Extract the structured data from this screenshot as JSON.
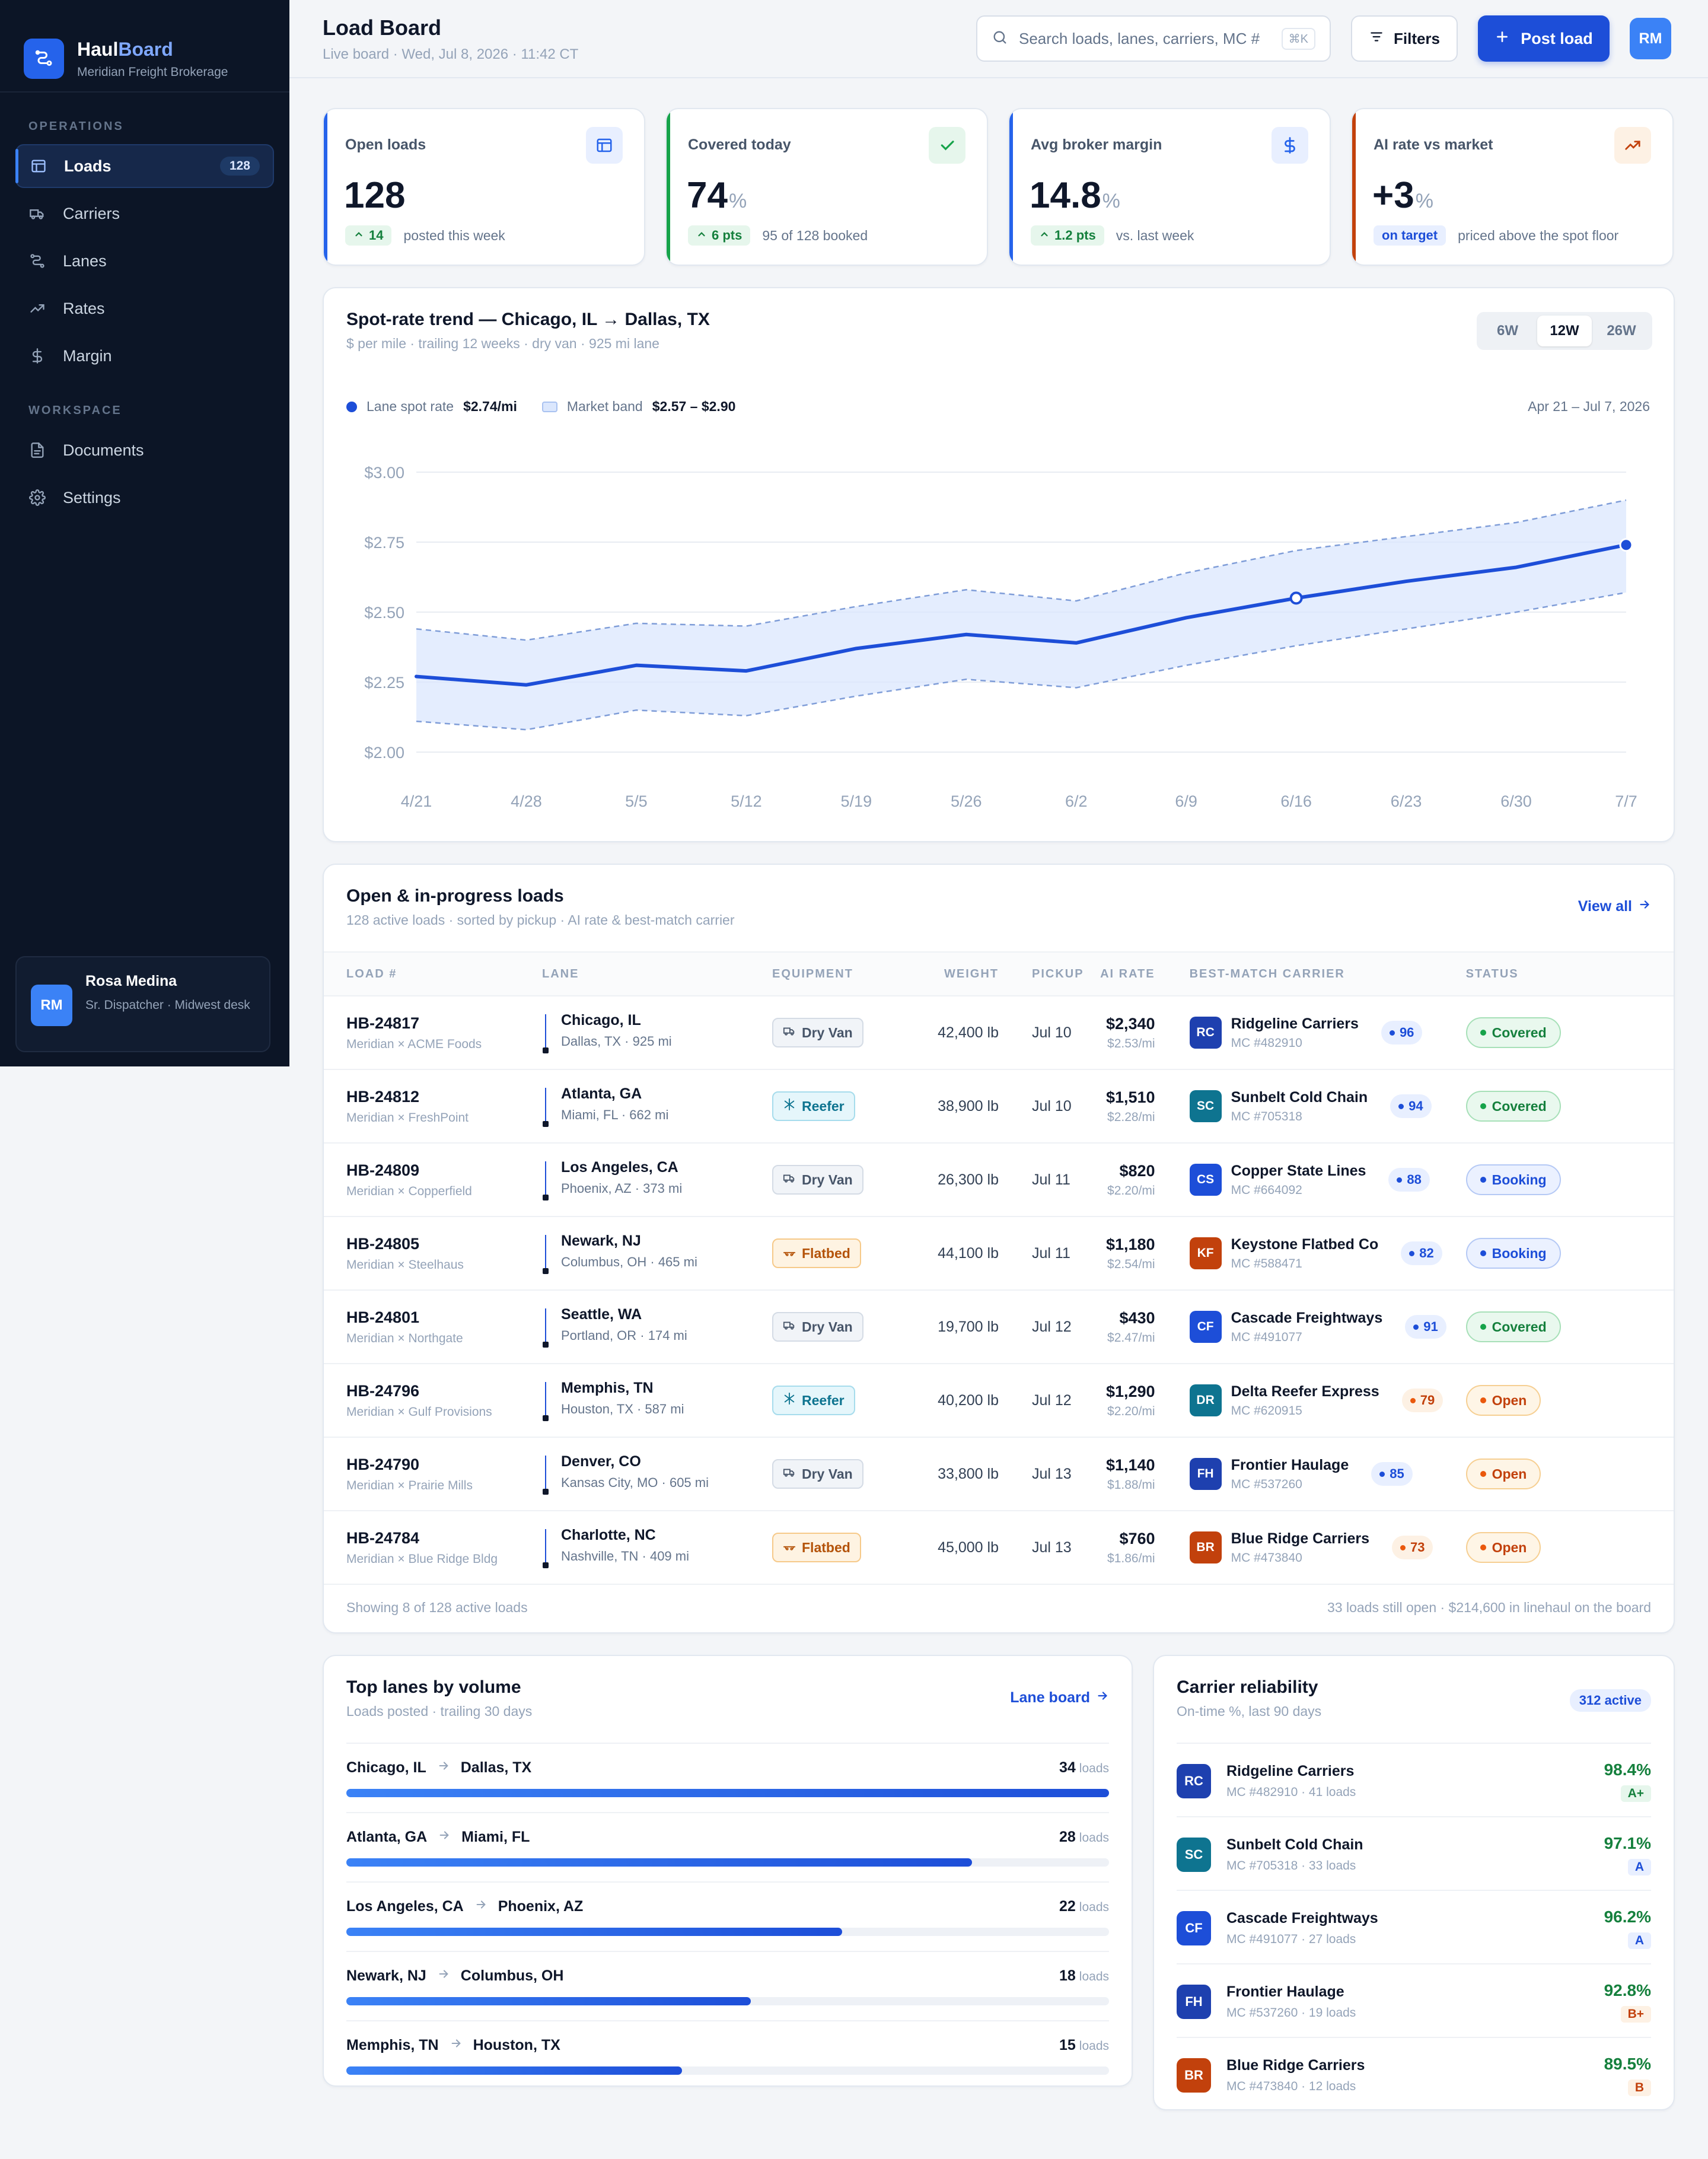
{
  "brand": {
    "name_part1": "Haul",
    "name_part2": "Board",
    "subtitle": "Meridian Freight Brokerage"
  },
  "sidebar": {
    "section_operations": "OPERATIONS",
    "section_workspace": "WORKSPACE",
    "items": [
      {
        "label": "Loads",
        "icon": "grid-icon",
        "badge": "128",
        "active": true
      },
      {
        "label": "Carriers",
        "icon": "truck-icon"
      },
      {
        "label": "Lanes",
        "icon": "route-icon"
      },
      {
        "label": "Rates",
        "icon": "trend-icon"
      },
      {
        "label": "Margin",
        "icon": "dollar-icon"
      }
    ],
    "workspace_items": [
      {
        "label": "Documents",
        "icon": "document-icon"
      },
      {
        "label": "Settings",
        "icon": "gear-icon"
      }
    ],
    "user": {
      "initials": "RM",
      "name": "Rosa Medina",
      "role": "Sr. Dispatcher · Midwest desk"
    }
  },
  "header": {
    "title": "Load Board",
    "subtitle": "Live board · Wed, Jul 8, 2026 · 11:42 CT",
    "search_placeholder": "Search loads, lanes, carriers, MC #",
    "search_shortcut": "⌘K",
    "filters_label": "Filters",
    "post_label": "Post load",
    "avatar_initials": "RM"
  },
  "kpis": [
    {
      "label": "Open loads",
      "value": "128",
      "unit": "",
      "delta": "14",
      "foot": "posted this week",
      "accent": "#2563eb"
    },
    {
      "label": "Covered today",
      "value": "74",
      "unit": "%",
      "delta": "6 pts",
      "foot": "95 of 128 booked",
      "accent": "#16a34a"
    },
    {
      "label": "Avg broker margin",
      "value": "14.8",
      "unit": "%",
      "delta": "1.2 pts",
      "foot": "vs. last week",
      "accent": "#2563eb"
    },
    {
      "label": "AI rate vs market",
      "value": "+3",
      "unit": "%",
      "tag": "on target",
      "foot": "priced above the spot floor",
      "accent": "#c2410c"
    }
  ],
  "trend": {
    "title": "Spot-rate trend — Chicago, IL → Dallas, TX",
    "subtitle": "$ per mile · trailing 12 weeks · dry van · 925 mi lane",
    "ranges": [
      "6W",
      "12W",
      "26W"
    ],
    "active_range": "12W",
    "legend_spot_label": "Lane spot rate",
    "legend_spot_value": "$2.74/mi",
    "legend_band_label": "Market band",
    "legend_band_value": "$2.57 – $2.90",
    "date_range": "Apr 21 – Jul 7, 2026"
  },
  "chart_data": {
    "type": "line",
    "title": "Spot-rate trend — Chicago, IL → Dallas, TX",
    "x": [
      "4/21",
      "4/28",
      "5/5",
      "5/12",
      "5/19",
      "5/26",
      "6/2",
      "6/9",
      "6/16",
      "6/23",
      "6/30",
      "7/7"
    ],
    "series": [
      {
        "name": "Lane spot rate",
        "values": [
          2.27,
          2.24,
          2.31,
          2.29,
          2.37,
          2.42,
          2.39,
          2.48,
          2.55,
          2.61,
          2.66,
          2.74
        ]
      },
      {
        "name": "Market band",
        "upper": [
          2.44,
          2.4,
          2.46,
          2.45,
          2.52,
          2.58,
          2.54,
          2.64,
          2.72,
          2.77,
          2.82,
          2.9
        ],
        "lower": [
          2.11,
          2.08,
          2.15,
          2.13,
          2.2,
          2.26,
          2.23,
          2.31,
          2.38,
          2.44,
          2.5,
          2.57
        ]
      }
    ],
    "ylim": [
      2.0,
      3.0
    ],
    "yticks": [
      "$2.00",
      "$2.25",
      "$2.50",
      "$2.75",
      "$3.00"
    ],
    "ytick_values": [
      2.0,
      2.25,
      2.5,
      2.75,
      3.0
    ],
    "grid": true,
    "colors": {
      "line": "#1d4ed8",
      "band_fill": "#dbe7fd",
      "band_edge": "#7f9dd8"
    }
  },
  "loads": {
    "title": "Open & in-progress loads",
    "subtitle": "128 active loads · sorted by pickup · AI rate & best-match carrier",
    "view_all": "View all",
    "columns": [
      "LOAD #",
      "LANE",
      "EQUIPMENT",
      "WEIGHT",
      "PICKUP",
      "AI RATE",
      "BEST-MATCH CARRIER",
      "STATUS"
    ],
    "rows": [
      {
        "id": "HB-24817",
        "shipper": "Meridian × ACME Foods",
        "from": "Chicago, IL",
        "to": "Dallas, TX · 925 mi",
        "equip": "Dry Van",
        "equip_type": "dry",
        "weight": "42,400 lb",
        "pickup": "Jul 10",
        "rate": "$2,340",
        "rate_mi": "$2.53/mi",
        "carrier_initials": "RC",
        "carrier_color": "#1e40af",
        "carrier": "Ridgeline Carriers",
        "mc": "MC #482910",
        "score": "96",
        "score_level": "hi",
        "status": "Covered",
        "status_type": "covered"
      },
      {
        "id": "HB-24812",
        "shipper": "Meridian × FreshPoint",
        "from": "Atlanta, GA",
        "to": "Miami, FL · 662 mi",
        "equip": "Reefer",
        "equip_type": "reefer",
        "weight": "38,900 lb",
        "pickup": "Jul 10",
        "rate": "$1,510",
        "rate_mi": "$2.28/mi",
        "carrier_initials": "SC",
        "carrier_color": "#0e7490",
        "carrier": "Sunbelt Cold Chain",
        "mc": "MC #705318",
        "score": "94",
        "score_level": "hi",
        "status": "Covered",
        "status_type": "covered"
      },
      {
        "id": "HB-24809",
        "shipper": "Meridian × Copperfield",
        "from": "Los Angeles, CA",
        "to": "Phoenix, AZ · 373 mi",
        "equip": "Dry Van",
        "equip_type": "dry",
        "weight": "26,300 lb",
        "pickup": "Jul 11",
        "rate": "$820",
        "rate_mi": "$2.20/mi",
        "carrier_initials": "CS",
        "carrier_color": "#1d4ed8",
        "carrier": "Copper State Lines",
        "mc": "MC #664092",
        "score": "88",
        "score_level": "hi",
        "status": "Booking",
        "status_type": "booking"
      },
      {
        "id": "HB-24805",
        "shipper": "Meridian × Steelhaus",
        "from": "Newark, NJ",
        "to": "Columbus, OH · 465 mi",
        "equip": "Flatbed",
        "equip_type": "flat",
        "weight": "44,100 lb",
        "pickup": "Jul 11",
        "rate": "$1,180",
        "rate_mi": "$2.54/mi",
        "carrier_initials": "KF",
        "carrier_color": "#c2410c",
        "carrier": "Keystone Flatbed Co",
        "mc": "MC #588471",
        "score": "82",
        "score_level": "hi",
        "status": "Booking",
        "status_type": "booking"
      },
      {
        "id": "HB-24801",
        "shipper": "Meridian × Northgate",
        "from": "Seattle, WA",
        "to": "Portland, OR · 174 mi",
        "equip": "Dry Van",
        "equip_type": "dry",
        "weight": "19,700 lb",
        "pickup": "Jul 12",
        "rate": "$430",
        "rate_mi": "$2.47/mi",
        "carrier_initials": "CF",
        "carrier_color": "#1d4ed8",
        "carrier": "Cascade Freightways",
        "mc": "MC #491077",
        "score": "91",
        "score_level": "hi",
        "status": "Covered",
        "status_type": "covered"
      },
      {
        "id": "HB-24796",
        "shipper": "Meridian × Gulf Provisions",
        "from": "Memphis, TN",
        "to": "Houston, TX · 587 mi",
        "equip": "Reefer",
        "equip_type": "reefer",
        "weight": "40,200 lb",
        "pickup": "Jul 12",
        "rate": "$1,290",
        "rate_mi": "$2.20/mi",
        "carrier_initials": "DR",
        "carrier_color": "#0e7490",
        "carrier": "Delta Reefer Express",
        "mc": "MC #620915",
        "score": "79",
        "score_level": "mid",
        "status": "Open",
        "status_type": "open"
      },
      {
        "id": "HB-24790",
        "shipper": "Meridian × Prairie Mills",
        "from": "Denver, CO",
        "to": "Kansas City, MO · 605 mi",
        "equip": "Dry Van",
        "equip_type": "dry",
        "weight": "33,800 lb",
        "pickup": "Jul 13",
        "rate": "$1,140",
        "rate_mi": "$1.88/mi",
        "carrier_initials": "FH",
        "carrier_color": "#1e40af",
        "carrier": "Frontier Haulage",
        "mc": "MC #537260",
        "score": "85",
        "score_level": "hi",
        "status": "Open",
        "status_type": "open"
      },
      {
        "id": "HB-24784",
        "shipper": "Meridian × Blue Ridge Bldg",
        "from": "Charlotte, NC",
        "to": "Nashville, TN · 409 mi",
        "equip": "Flatbed",
        "equip_type": "flat",
        "weight": "45,000 lb",
        "pickup": "Jul 13",
        "rate": "$760",
        "rate_mi": "$1.86/mi",
        "carrier_initials": "BR",
        "carrier_color": "#c2410c",
        "carrier": "Blue Ridge Carriers",
        "mc": "MC #473840",
        "score": "73",
        "score_level": "mid",
        "status": "Open",
        "status_type": "open"
      }
    ],
    "footer_left": "Showing 8 of 128 active loads",
    "footer_right": "33 loads still open · $214,600 in linehaul on the board"
  },
  "top_lanes": {
    "title": "Top lanes by volume",
    "subtitle": "Loads posted · trailing 30 days",
    "link": "Lane board",
    "unit": "loads",
    "rows": [
      {
        "from": "Chicago, IL",
        "to": "Dallas, TX",
        "count": "34",
        "fraction": 1.0
      },
      {
        "from": "Atlanta, GA",
        "to": "Miami, FL",
        "count": "28",
        "fraction": 0.82
      },
      {
        "from": "Los Angeles, CA",
        "to": "Phoenix, AZ",
        "count": "22",
        "fraction": 0.65
      },
      {
        "from": "Newark, NJ",
        "to": "Columbus, OH",
        "count": "18",
        "fraction": 0.53
      },
      {
        "from": "Memphis, TN",
        "to": "Houston, TX",
        "count": "15",
        "fraction": 0.44
      }
    ]
  },
  "reliability": {
    "title": "Carrier reliability",
    "subtitle": "On-time %, last 90 days",
    "active": "312 active",
    "rows": [
      {
        "initials": "RC",
        "color": "#1e40af",
        "name": "Ridgeline Carriers",
        "meta": "MC #482910 · 41 loads",
        "pct": "98.4%",
        "grade": "A+",
        "grade_type": "g-ap"
      },
      {
        "initials": "SC",
        "color": "#0e7490",
        "name": "Sunbelt Cold Chain",
        "meta": "MC #705318 · 33 loads",
        "pct": "97.1%",
        "grade": "A",
        "grade_type": "g-a"
      },
      {
        "initials": "CF",
        "color": "#1d4ed8",
        "name": "Cascade Freightways",
        "meta": "MC #491077 · 27 loads",
        "pct": "96.2%",
        "grade": "A",
        "grade_type": "g-a"
      },
      {
        "initials": "FH",
        "color": "#1e40af",
        "name": "Frontier Haulage",
        "meta": "MC #537260 · 19 loads",
        "pct": "92.8%",
        "grade": "B+",
        "grade_type": "g-bp"
      },
      {
        "initials": "BR",
        "color": "#c2410c",
        "name": "Blue Ridge Carriers",
        "meta": "MC #473840 · 12 loads",
        "pct": "89.5%",
        "grade": "B",
        "grade_type": "g-b"
      }
    ]
  }
}
